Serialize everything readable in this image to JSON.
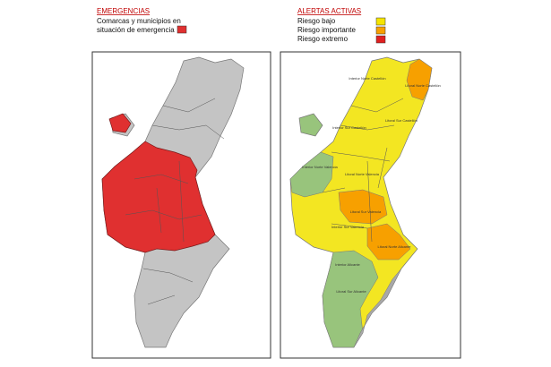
{
  "left_legend": {
    "title": "EMERGENCIAS",
    "lines": [
      "Comarcas y municipios en",
      "situación de emergencia"
    ],
    "color": "#e03030"
  },
  "right_legend": {
    "title": "ALERTAS ACTIVAS",
    "items": [
      {
        "label": "Riesgo bajo",
        "color": "#f5e400"
      },
      {
        "label": "Riesgo importante",
        "color": "#f7a000"
      },
      {
        "label": "Riesgo extremo",
        "color": "#e02020"
      }
    ]
  },
  "zones": [
    "Litoral Norte Castellón",
    "Interior Norte Castellón",
    "Litoral Sur Castellón",
    "Interior Sur Castellón",
    "Interior Norte Valencia",
    "Litoral Norte Valencia",
    "Litoral Sur Valencia",
    "Interior Sur Valencia",
    "Litoral Norte Alicante",
    "Interior Alicante",
    "Litoral Sur Alicante"
  ]
}
